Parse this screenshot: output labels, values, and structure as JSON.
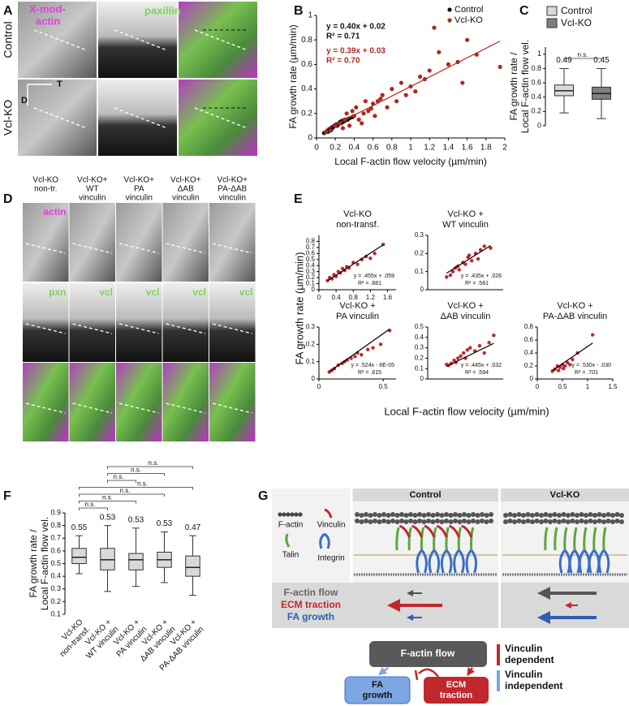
{
  "panel_letters": [
    "A",
    "B",
    "C",
    "D",
    "E",
    "F",
    "G"
  ],
  "panel_a": {
    "row_labels": [
      "Control",
      "Vcl-KO"
    ],
    "channel_labels": [
      [
        "X-mod-",
        "actin"
      ],
      [
        "paxillin"
      ]
    ],
    "axis_labels": [
      "T",
      "D"
    ]
  },
  "panel_d": {
    "column_headers": [
      [
        "Vcl-KO",
        "non-tr."
      ],
      [
        "Vcl-KO+",
        "WT",
        "vinculin"
      ],
      [
        "Vcl-KO+",
        "PA",
        "vinculin"
      ],
      [
        "Vcl-KO+",
        "ΔAB",
        "vinculin"
      ],
      [
        "Vcl-KO+",
        "PA-ΔAB",
        "vinculin"
      ]
    ],
    "channel_labels": [
      [
        "actin"
      ],
      [
        "pxn",
        "vcl",
        "vcl",
        "vcl",
        "vcl"
      ]
    ]
  },
  "panel_e": {
    "xlabel": "Local F-actin flow velocity (µm/min)",
    "ylabel": "FA growth rate (µm/min)"
  },
  "panel_g": {
    "columns": [
      "Control",
      "Vcl-KO"
    ],
    "legend": [
      "F-actin",
      "Vinculin",
      "Talin",
      "Integrin"
    ],
    "rows": [
      "F-actin flow",
      "ECM traction",
      "FA growth"
    ],
    "flowchart": {
      "source": "F-actin flow",
      "targets": [
        [
          "FA",
          "growth"
        ],
        [
          "ECM",
          "traction"
        ]
      ],
      "legend": [
        [
          "Vinculin",
          "dependent"
        ],
        [
          "Vinculin",
          "independent"
        ]
      ]
    }
  },
  "chart_data": [
    {
      "type": "scatter",
      "xlabel": "Local F-actin flow velocity (µm/min)",
      "ylabel": "FA growth rate (µm/min)",
      "xlim": [
        0,
        2
      ],
      "xticks": [
        0,
        0.2,
        0.4,
        0.6,
        0.8,
        1,
        1.2,
        1.4,
        1.6,
        1.8,
        2
      ],
      "ylim": [
        0,
        1
      ],
      "yticks": [
        0,
        0.2,
        0.4,
        0.6,
        0.8,
        1
      ],
      "series": [
        {
          "name": "Control",
          "color": "#111111",
          "x": [
            0.08,
            0.1,
            0.12,
            0.13,
            0.15,
            0.16,
            0.18,
            0.19,
            0.2,
            0.21,
            0.22,
            0.24,
            0.25,
            0.26,
            0.28,
            0.3,
            0.31,
            0.33,
            0.35,
            0.38,
            0.12,
            0.17,
            0.23,
            0.27,
            0.14
          ],
          "values": [
            0.04,
            0.05,
            0.06,
            0.07,
            0.08,
            0.07,
            0.09,
            0.1,
            0.1,
            0.11,
            0.1,
            0.12,
            0.13,
            0.12,
            0.13,
            0.14,
            0.15,
            0.15,
            0.16,
            0.17,
            0.05,
            0.09,
            0.11,
            0.14,
            0.06
          ],
          "fit": {
            "slope": 0.4,
            "intercept": 0.02,
            "equation": "y = 0.40x + 0.02",
            "r2": "R² = 0.71"
          }
        },
        {
          "name": "Vcl-KO",
          "color": "#b0281e",
          "x": [
            0.1,
            0.15,
            0.2,
            0.25,
            0.3,
            0.32,
            0.35,
            0.4,
            0.42,
            0.45,
            0.5,
            0.52,
            0.55,
            0.6,
            0.62,
            0.65,
            0.7,
            0.75,
            0.8,
            0.85,
            0.9,
            0.95,
            1.0,
            1.05,
            1.1,
            1.2,
            1.25,
            1.3,
            1.4,
            1.5,
            1.55,
            1.6,
            1.7,
            1.95,
            0.28,
            0.38,
            0.48,
            0.58,
            0.68,
            1.15
          ],
          "values": [
            0.05,
            0.06,
            0.1,
            0.12,
            0.15,
            0.2,
            0.1,
            0.18,
            0.25,
            0.15,
            0.2,
            0.3,
            0.22,
            0.28,
            0.18,
            0.3,
            0.35,
            0.25,
            0.4,
            0.3,
            0.45,
            0.35,
            0.42,
            0.38,
            0.5,
            0.55,
            0.9,
            0.7,
            0.6,
            0.62,
            0.45,
            0.8,
            0.68,
            0.58,
            0.08,
            0.22,
            0.12,
            0.24,
            0.32,
            0.48
          ],
          "fit": {
            "slope": 0.39,
            "intercept": 0.03,
            "equation": "y = 0.39x + 0.03",
            "r2": "R² = 0.70"
          }
        }
      ]
    },
    {
      "type": "box",
      "ylabel": [
        "FA growth rate /",
        "Local F-actin flow vel."
      ],
      "names": [
        "Control",
        "Vcl-KO"
      ],
      "colors": [
        "#d9d9d9",
        "#7f7f7f"
      ],
      "values": [
        0.49,
        0.45
      ],
      "q1": [
        0.42,
        0.37
      ],
      "q3": [
        0.57,
        0.54
      ],
      "whisker_low": [
        0.18,
        0.1
      ],
      "whisker_high": [
        0.8,
        0.8
      ],
      "ylim": [
        0,
        1.1
      ],
      "yticks": [
        0,
        0.2,
        0.4,
        0.6,
        0.8,
        1
      ],
      "comparisons": [
        {
          "pair": [
            0,
            1
          ],
          "label": "n.s."
        }
      ]
    },
    {
      "type": "scatter",
      "title": [
        "Vcl-KO",
        "non-transf."
      ],
      "xlim": [
        0,
        1.8
      ],
      "xticks": [
        0,
        0.4,
        0.8,
        1.2,
        1.6
      ],
      "ylim": [
        0,
        0.9
      ],
      "yticks": [
        0,
        0.1,
        0.2,
        0.3,
        0.4,
        0.5,
        0.6,
        0.7,
        0.8
      ],
      "series": [
        {
          "color": "#c0282d",
          "x": [
            0.2,
            0.25,
            0.3,
            0.35,
            0.4,
            0.45,
            0.5,
            0.55,
            0.6,
            0.65,
            0.7,
            0.8,
            0.9,
            1.0,
            1.1,
            1.2,
            1.3,
            1.5
          ],
          "values": [
            0.15,
            0.2,
            0.18,
            0.25,
            0.22,
            0.3,
            0.28,
            0.35,
            0.32,
            0.38,
            0.36,
            0.45,
            0.42,
            0.5,
            0.55,
            0.52,
            0.6,
            0.75
          ],
          "fit": {
            "slope": 0.455,
            "intercept": 0.059,
            "equation": "y = .455x + .059",
            "r2": "R² = .881"
          }
        }
      ]
    },
    {
      "type": "scatter",
      "title": [
        "Vcl-KO +",
        "WT vinculin"
      ],
      "xlim": [
        0,
        0.6
      ],
      "ylim": [
        0,
        0.3
      ],
      "yticks": [
        0,
        0.1,
        0.2,
        0.3
      ],
      "series": [
        {
          "color": "#c0282d",
          "x": [
            0.15,
            0.18,
            0.2,
            0.22,
            0.25,
            0.28,
            0.3,
            0.32,
            0.35,
            0.38,
            0.4,
            0.42,
            0.45,
            0.5,
            0.24,
            0.33
          ],
          "values": [
            0.07,
            0.08,
            0.1,
            0.12,
            0.11,
            0.15,
            0.14,
            0.18,
            0.16,
            0.2,
            0.17,
            0.22,
            0.24,
            0.23,
            0.13,
            0.19
          ],
          "fit": {
            "slope": 0.435,
            "intercept": 0.026,
            "equation": "y = .435x + .026",
            "r2": "R² = .581"
          }
        }
      ]
    },
    {
      "type": "scatter",
      "title": [
        "Vcl-KO +",
        "PA vinculin"
      ],
      "xlim": [
        0,
        0.6
      ],
      "xticks": [
        0,
        0.5
      ],
      "ylim": [
        0,
        0.3
      ],
      "yticks": [
        0,
        0.1,
        0.2,
        0.3
      ],
      "series": [
        {
          "color": "#c0282d",
          "x": [
            0.08,
            0.1,
            0.12,
            0.15,
            0.18,
            0.2,
            0.22,
            0.25,
            0.28,
            0.3,
            0.33,
            0.38,
            0.42,
            0.48,
            0.55
          ],
          "values": [
            0.04,
            0.05,
            0.06,
            0.08,
            0.09,
            0.1,
            0.11,
            0.12,
            0.13,
            0.15,
            0.14,
            0.17,
            0.18,
            0.2,
            0.28
          ],
          "fit": {
            "slope": 0.524,
            "intercept": -8e-05,
            "equation": "y = .524x - 8E-05",
            "r2": "R² = .815"
          }
        }
      ]
    },
    {
      "type": "scatter",
      "title": [
        "Vcl-KO +",
        "ΔAB vinculin"
      ],
      "xlim": [
        0,
        0.8
      ],
      "ylim": [
        0,
        0.5
      ],
      "yticks": [
        0,
        0.1,
        0.2,
        0.3,
        0.4,
        0.5
      ],
      "series": [
        {
          "color": "#c0282d",
          "x": [
            0.2,
            0.22,
            0.25,
            0.28,
            0.3,
            0.32,
            0.35,
            0.38,
            0.4,
            0.42,
            0.45,
            0.5,
            0.55,
            0.6,
            0.65,
            0.7
          ],
          "values": [
            0.14,
            0.13,
            0.15,
            0.18,
            0.16,
            0.2,
            0.22,
            0.25,
            0.2,
            0.28,
            0.3,
            0.27,
            0.32,
            0.25,
            0.35,
            0.42
          ],
          "fit": {
            "slope": 0.445,
            "intercept": 0.032,
            "equation": "y = .445x + .032",
            "r2": "R² = .594"
          }
        }
      ]
    },
    {
      "type": "scatter",
      "title": [
        "Vcl-KO +",
        "PA-ΔAB vinculin"
      ],
      "xlim": [
        0,
        1.5
      ],
      "xticks": [
        0,
        0.5,
        1,
        1.5
      ],
      "ylim": [
        0,
        0.8
      ],
      "yticks": [
        0,
        0.2,
        0.4,
        0.6,
        0.8
      ],
      "series": [
        {
          "color": "#c0282d",
          "x": [
            0.3,
            0.35,
            0.4,
            0.42,
            0.45,
            0.5,
            0.52,
            0.55,
            0.6,
            0.65,
            0.7,
            0.8,
            1.1
          ],
          "values": [
            0.12,
            0.15,
            0.2,
            0.13,
            0.18,
            0.22,
            0.16,
            0.2,
            0.25,
            0.22,
            0.3,
            0.4,
            0.68
          ],
          "fit": {
            "slope": 0.53,
            "intercept": -0.03,
            "equation": "y = .530x - .030",
            "r2": "R² = .701"
          }
        }
      ]
    },
    {
      "type": "box",
      "ylabel": [
        "FA growth rate /",
        "Local F-actin flow vel."
      ],
      "categories": [
        [
          "Vcl-KO",
          "non-transf."
        ],
        [
          "Vcl-KO +",
          "WT vinculin"
        ],
        [
          "Vcl-KO +",
          "PA vinculin"
        ],
        [
          "Vcl-KO +",
          "ΔAB vinculin"
        ],
        [
          "Vcl-KO +",
          "PA-ΔAB vinculin"
        ]
      ],
      "color": "#d9d9d9",
      "values": [
        0.55,
        0.53,
        0.53,
        0.53,
        0.47
      ],
      "q1": [
        0.5,
        0.45,
        0.45,
        0.47,
        0.4
      ],
      "q3": [
        0.62,
        0.62,
        0.58,
        0.59,
        0.56
      ],
      "whisker_low": [
        0.42,
        0.28,
        0.32,
        0.35,
        0.25
      ],
      "whisker_high": [
        0.72,
        0.8,
        0.78,
        0.75,
        0.72
      ],
      "ylim": [
        0.1,
        0.9
      ],
      "yticks": [
        0.1,
        0.2,
        0.3,
        0.4,
        0.5,
        0.6,
        0.7,
        0.8,
        0.9
      ],
      "comparisons": [
        {
          "pair": [
            1,
            4
          ],
          "label": "n.s."
        },
        {
          "pair": [
            1,
            3
          ],
          "label": "n.s."
        },
        {
          "pair": [
            1,
            2
          ],
          "label": "n.s."
        },
        {
          "pair": [
            0,
            4
          ],
          "label": "n.s."
        },
        {
          "pair": [
            0,
            3
          ],
          "label": "n.s."
        },
        {
          "pair": [
            0,
            2
          ],
          "label": "n.s."
        },
        {
          "pair": [
            0,
            1
          ],
          "label": "n.s."
        }
      ]
    }
  ]
}
